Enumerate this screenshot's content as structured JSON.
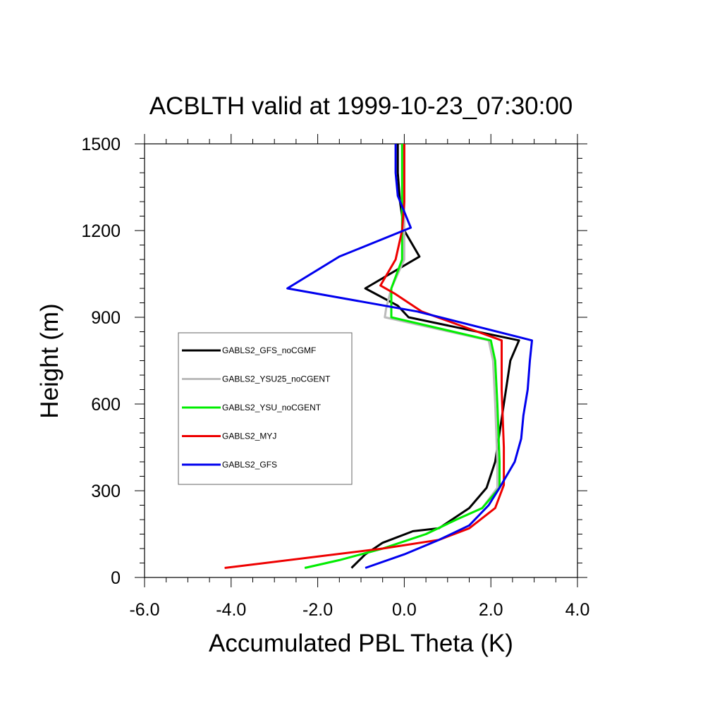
{
  "chart_data": {
    "type": "line",
    "title": "ACBLTH valid at 1999-10-23_07:30:00",
    "xlabel": "Accumulated PBL Theta (K)",
    "ylabel": "Height (m)",
    "xlim": [
      -6.0,
      4.0
    ],
    "ylim": [
      0,
      1500
    ],
    "xticks": [
      -6.0,
      -4.0,
      -2.0,
      0.0,
      2.0,
      4.0
    ],
    "xtick_labels": [
      "-6.0",
      "-4.0",
      "-2.0",
      "0.0",
      "2.0",
      "4.0"
    ],
    "yticks": [
      0,
      300,
      600,
      900,
      1200,
      1500
    ],
    "ytick_labels": [
      "0",
      "300",
      "600",
      "900",
      "1200",
      "1500"
    ],
    "grid": false,
    "legend_position": "middle-left",
    "series": [
      {
        "name": "GABLS2_GFS_noCGMF",
        "color": "#000000",
        "x": [
          -1.22,
          -0.9,
          -0.5,
          0.2,
          0.8,
          1.5,
          1.9,
          2.1,
          2.3,
          2.45,
          2.65,
          0.1,
          -0.15,
          -0.9,
          0.35,
          0.0,
          -0.1,
          -0.15,
          -0.15
        ],
        "y": [
          33,
          80,
          120,
          160,
          170,
          240,
          310,
          400,
          600,
          750,
          820,
          900,
          940,
          1000,
          1110,
          1200,
          1300,
          1400,
          1500
        ]
      },
      {
        "name": "GABLS2_YSU25_noCGENT",
        "color": "#bbbbbb",
        "x": [
          -2.3,
          -1.5,
          -0.5,
          0.5,
          1.2,
          1.8,
          2.15,
          2.15,
          2.1,
          2.05,
          1.95,
          -0.45,
          -0.42,
          -0.3,
          0.0,
          0.0,
          0.0,
          0.0,
          0.0
        ],
        "y": [
          33,
          60,
          100,
          150,
          200,
          240,
          310,
          400,
          600,
          750,
          820,
          900,
          930,
          1000,
          1100,
          1200,
          1300,
          1400,
          1500
        ]
      },
      {
        "name": "GABLS2_YSU_noCGENT",
        "color": "#00ee00",
        "x": [
          -2.3,
          -1.5,
          -0.5,
          0.5,
          1.2,
          1.8,
          2.2,
          2.2,
          2.15,
          2.1,
          2.0,
          -0.3,
          -0.3,
          -0.3,
          -0.05,
          -0.05,
          -0.05,
          -0.05,
          -0.05
        ],
        "y": [
          33,
          60,
          100,
          150,
          200,
          240,
          310,
          400,
          600,
          750,
          820,
          900,
          930,
          1000,
          1100,
          1200,
          1300,
          1400,
          1500
        ]
      },
      {
        "name": "GABLS2_MYJ",
        "color": "#ee0000",
        "x": [
          -4.15,
          -0.5,
          0.8,
          1.5,
          2.1,
          2.3,
          2.3,
          2.25,
          2.25,
          0.4,
          -0.2,
          -0.55,
          -0.2,
          -0.05,
          0.0,
          0.0,
          0.0
        ],
        "y": [
          33,
          100,
          130,
          170,
          240,
          320,
          450,
          650,
          820,
          920,
          980,
          1010,
          1100,
          1200,
          1300,
          1400,
          1500
        ]
      },
      {
        "name": "GABLS2_GFS",
        "color": "#0000ee",
        "x": [
          -0.9,
          0.0,
          0.8,
          1.5,
          1.95,
          2.2,
          2.55,
          2.7,
          2.75,
          2.85,
          2.9,
          2.95,
          0.3,
          -2.7,
          -1.5,
          0.15,
          -0.15,
          -0.2,
          -0.2,
          -0.2
        ],
        "y": [
          33,
          80,
          130,
          180,
          250,
          310,
          400,
          480,
          560,
          650,
          750,
          820,
          920,
          1000,
          1110,
          1210,
          1320,
          1400,
          1440,
          1500
        ]
      }
    ]
  }
}
